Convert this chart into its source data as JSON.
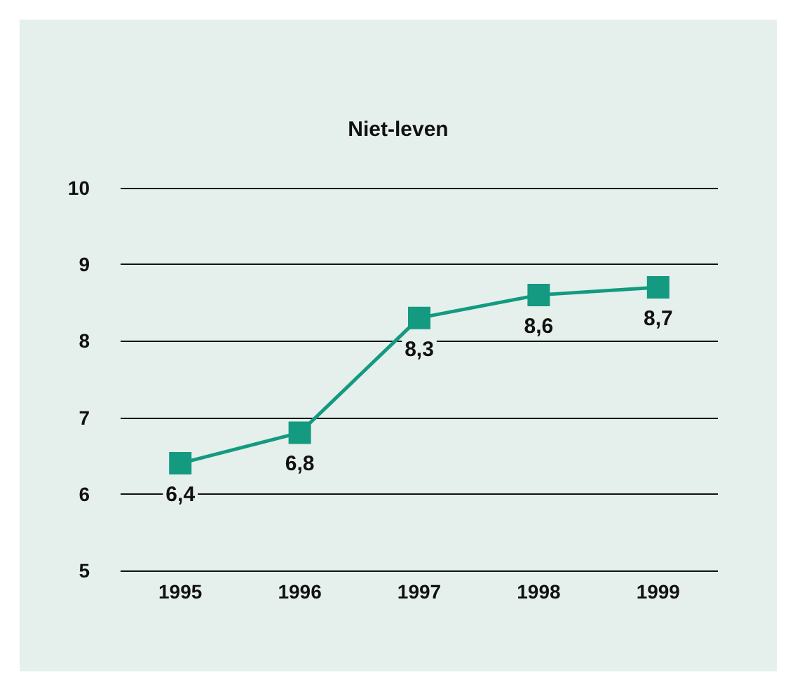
{
  "chart_data": {
    "type": "line",
    "title": "Niet-leven",
    "categories": [
      "1995",
      "1996",
      "1997",
      "1998",
      "1999"
    ],
    "series": [
      {
        "color": "#139a80",
        "values": [
          6.4,
          6.8,
          8.3,
          8.6,
          8.7
        ],
        "value_labels": [
          "6,4",
          "6,8",
          "8,3",
          "8,6",
          "8,7"
        ]
      }
    ],
    "ylim": [
      5,
      10
    ],
    "yticks": [
      5,
      6,
      7,
      8,
      9,
      10
    ],
    "grid": "y",
    "marker": "square",
    "line_style": "solid"
  }
}
